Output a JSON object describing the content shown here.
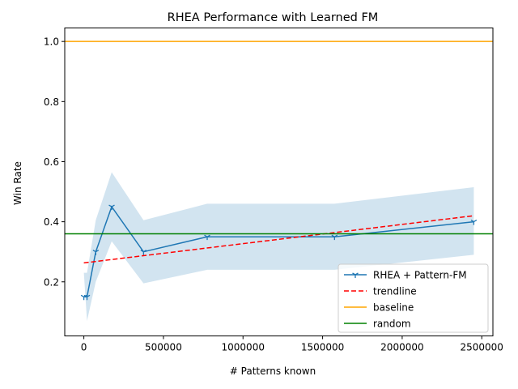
{
  "chart_data": {
    "type": "line",
    "title": "RHEA Performance with Learned FM",
    "xlabel": "# Patterns known",
    "ylabel": "Win Rate",
    "xlim": [
      -120000,
      2570000
    ],
    "ylim": [
      0.02,
      1.045
    ],
    "x_ticks": [
      0,
      500000,
      1000000,
      1500000,
      2000000,
      2500000
    ],
    "x_tick_labels": [
      "0",
      "500000",
      "1000000",
      "1500000",
      "2000000",
      "2500000"
    ],
    "y_ticks": [
      0.2,
      0.4,
      0.6,
      0.8,
      1.0
    ],
    "y_tick_labels": [
      "0.2",
      "0.4",
      "0.6",
      "0.8",
      "1.0"
    ],
    "grid": false,
    "legend_position": "lower-right",
    "series": [
      {
        "name": "RHEA + Pattern-FM",
        "color": "#1f77b4",
        "style": "solid",
        "marker": "tri-down",
        "x": [
          0,
          20000,
          75000,
          175000,
          375000,
          775000,
          1575000,
          2450000
        ],
        "y": [
          0.15,
          0.15,
          0.3,
          0.45,
          0.3,
          0.35,
          0.35,
          0.4
        ]
      },
      {
        "name": "trendline",
        "color": "#ff0000",
        "style": "dashed",
        "x": [
          0,
          2450000
        ],
        "y": [
          0.263,
          0.42
        ]
      },
      {
        "name": "baseline",
        "color": "#ffa500",
        "style": "solid",
        "hline": 1.0
      },
      {
        "name": "random",
        "color": "#008000",
        "style": "solid",
        "hline": 0.36
      }
    ],
    "confidence_band": {
      "color": "#1f77b4",
      "x": [
        0,
        20000,
        75000,
        175000,
        375000,
        775000,
        1575000,
        2450000
      ],
      "lower": [
        0.23,
        0.07,
        0.2,
        0.335,
        0.195,
        0.24,
        0.24,
        0.29
      ],
      "upper": [
        0.23,
        0.23,
        0.405,
        0.565,
        0.405,
        0.46,
        0.46,
        0.515
      ]
    }
  }
}
